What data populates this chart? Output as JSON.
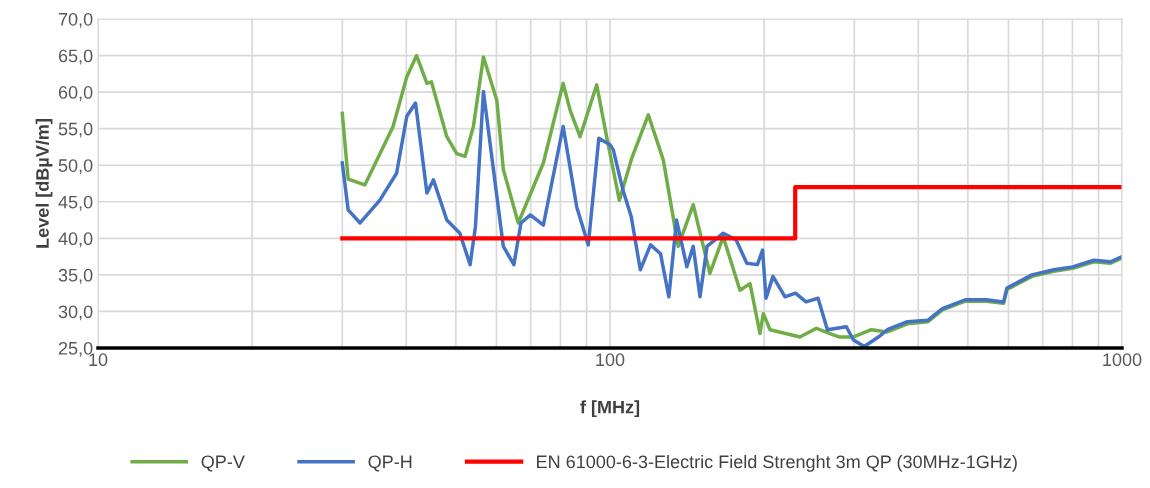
{
  "chart_data": {
    "type": "line",
    "xlabel": "f [MHz]",
    "ylabel": "Level [dBµV/m]",
    "log": "x",
    "xlim": [
      10,
      1000
    ],
    "xticks": [
      10,
      100,
      1000
    ],
    "ylim": [
      25,
      70
    ],
    "yticks": [
      {
        "value": 25,
        "label": "25,0"
      },
      {
        "value": 30,
        "label": "30,0"
      },
      {
        "value": 35,
        "label": "35,0"
      },
      {
        "value": 40,
        "label": "40,0"
      },
      {
        "value": 45,
        "label": "45,0"
      },
      {
        "value": 50,
        "label": "50,0"
      },
      {
        "value": 55,
        "label": "55,0"
      },
      {
        "value": 60,
        "label": "60,0"
      },
      {
        "value": 65,
        "label": "65,0"
      },
      {
        "value": 70,
        "label": "70,0"
      }
    ],
    "grid": true,
    "legend": "bottom",
    "marker": "none",
    "line_style": "solid",
    "series": [
      {
        "name": "QP-V",
        "color": "#70ad47",
        "x": [
          30,
          30.8,
          33.2,
          37.7,
          40.1,
          41.9,
          43.9,
          44.8,
          48,
          50.2,
          52.1,
          54.1,
          56.6,
          60.1,
          61.9,
          66.2,
          74.1,
          81,
          83.6,
          87.4,
          94.2,
          98.5,
          104.3,
          110.2,
          118.8,
          127.1,
          135.9,
          145.4,
          156.7,
          166.4,
          179.4,
          187.7,
          196.3,
          199.3,
          205.4,
          235,
          253,
          273,
          281,
          298,
          324,
          348,
          381,
          418,
          446,
          494,
          543,
          587,
          596,
          667,
          736,
          801,
          881,
          950,
          1000
        ],
        "values": [
          57.1,
          48.1,
          47.3,
          55.3,
          62.1,
          65,
          61.2,
          61.4,
          53.9,
          51.6,
          51.2,
          55.3,
          64.8,
          58.9,
          49.4,
          42.1,
          50.3,
          61.2,
          57.5,
          53.9,
          61,
          53.9,
          45.2,
          50.9,
          56.9,
          50.7,
          38.9,
          44.6,
          35.2,
          40.2,
          32.9,
          33.8,
          27,
          29.7,
          27.5,
          26.5,
          27.7,
          26.8,
          26.5,
          26.5,
          27.5,
          27.2,
          28.3,
          28.6,
          30.2,
          31.4,
          31.4,
          31.1,
          33,
          34.8,
          35.5,
          35.9,
          36.8,
          36.6,
          37.3
        ]
      },
      {
        "name": "QP-H",
        "color": "#4472c4",
        "x": [
          30,
          30.8,
          32.5,
          35.5,
          38.3,
          40.1,
          41.7,
          43.9,
          45.2,
          48,
          50.9,
          53.3,
          54.6,
          56.6,
          59.1,
          61.9,
          64.9,
          67,
          69.9,
          74.1,
          81,
          86.1,
          90.7,
          95.1,
          100,
          101.5,
          106,
          110,
          114.6,
          120,
          125.5,
          130.3,
          134.9,
          141.3,
          145.4,
          149.9,
          154.7,
          166.4,
          176.3,
          185,
          194,
          198.6,
          201.7,
          208.1,
          219.7,
          230.3,
          241.5,
          254.9,
          265.8,
          289.5,
          298.9,
          313.8,
          334.3,
          348,
          381,
          418,
          446,
          494,
          543,
          587,
          596,
          667,
          736,
          801,
          881,
          950,
          1000
        ],
        "values": [
          50.3,
          43.9,
          42.1,
          45.2,
          48.9,
          56.7,
          58.5,
          46.2,
          48,
          42.5,
          40.7,
          36.4,
          41.6,
          60.1,
          49.8,
          38.9,
          36.4,
          42.1,
          43.2,
          41.8,
          55.3,
          44.3,
          39.1,
          53.7,
          52.8,
          52.1,
          46.6,
          43,
          35.7,
          39.1,
          37.9,
          32,
          42.5,
          36.1,
          38.9,
          32,
          38.9,
          40.7,
          39.8,
          36.6,
          36.4,
          38.4,
          31.8,
          34.8,
          32,
          32.5,
          31.3,
          31.8,
          27.5,
          27.9,
          26.1,
          25.2,
          26.5,
          27.5,
          28.6,
          28.8,
          30.4,
          31.6,
          31.6,
          31.3,
          33.2,
          35,
          35.7,
          36.1,
          37,
          36.8,
          37.5
        ]
      },
      {
        "name": "EN 61000-6-3-Electric Field Strenght 3m QP (30MHz-1GHz)",
        "color": "#ff0000",
        "x": [
          30,
          230,
          230,
          1000
        ],
        "values": [
          40,
          40,
          47,
          47
        ]
      }
    ]
  }
}
